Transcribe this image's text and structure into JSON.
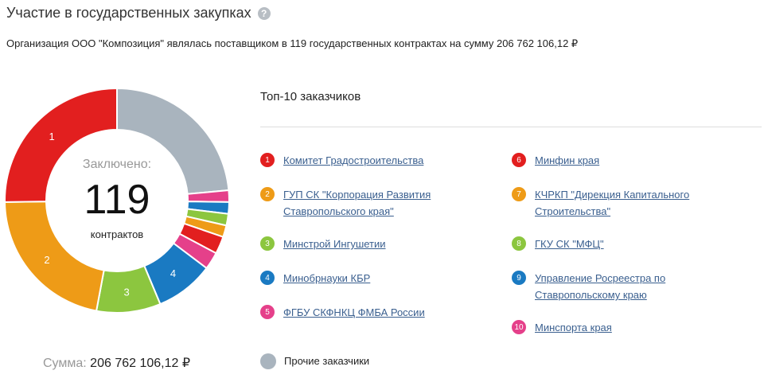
{
  "header": {
    "title": "Участие в государственных закупках",
    "help_glyph": "?"
  },
  "summary": "Организация ООО \"Композиция\" являлась поставщиком в 119 государственных контрактах на сумму 206 762 106,12 ₽",
  "donut": {
    "center_label": "Заключено:",
    "center_count": "119",
    "center_unit": "контрактов"
  },
  "sum": {
    "label": "Сумма:",
    "value": "206 762 106,12 ₽"
  },
  "top": {
    "title": "Топ-10 заказчиков",
    "items": [
      {
        "num": "1",
        "label": "Комитет Градостроительства",
        "color": "#e21f1f"
      },
      {
        "num": "2",
        "label": "ГУП СК \"Корпорация Развития Ставропольского края\"",
        "color": "#ee9b17"
      },
      {
        "num": "3",
        "label": "Минстрой Ингушетии",
        "color": "#8cc63f"
      },
      {
        "num": "4",
        "label": "Минобрнауки КБР",
        "color": "#1a7ac2"
      },
      {
        "num": "5",
        "label": "ФГБУ СКФНКЦ ФМБА России",
        "color": "#e5408a"
      },
      {
        "num": "6",
        "label": "Минфин края",
        "color": "#e21f1f"
      },
      {
        "num": "7",
        "label": "КЧРКП \"Дирекция Капитального Строительства\"",
        "color": "#ee9b17"
      },
      {
        "num": "8",
        "label": "ГКУ СК \"МФЦ\"",
        "color": "#8cc63f"
      },
      {
        "num": "9",
        "label": "Управление Росреестра по Ставропольскому краю",
        "color": "#1a7ac2"
      },
      {
        "num": "10",
        "label": "Минспорта края",
        "color": "#e5408a"
      }
    ],
    "other_label": "Прочие заказчики",
    "other_color": "#a9b4be"
  },
  "chart_data": {
    "type": "pie",
    "title": "",
    "categories": [
      "1",
      "2",
      "3",
      "4",
      "5",
      "6",
      "7",
      "8",
      "9",
      "10",
      "Прочие заказчики"
    ],
    "values": [
      30,
      26,
      11,
      10,
      3,
      3,
      2,
      2,
      2,
      2,
      28
    ],
    "colors": [
      "#e21f1f",
      "#ee9b17",
      "#8cc63f",
      "#1a7ac2",
      "#e5408a",
      "#e21f1f",
      "#ee9b17",
      "#8cc63f",
      "#1a7ac2",
      "#e5408a",
      "#a9b4be"
    ],
    "labels_shown": [
      "1",
      "2",
      "3",
      "4"
    ]
  }
}
